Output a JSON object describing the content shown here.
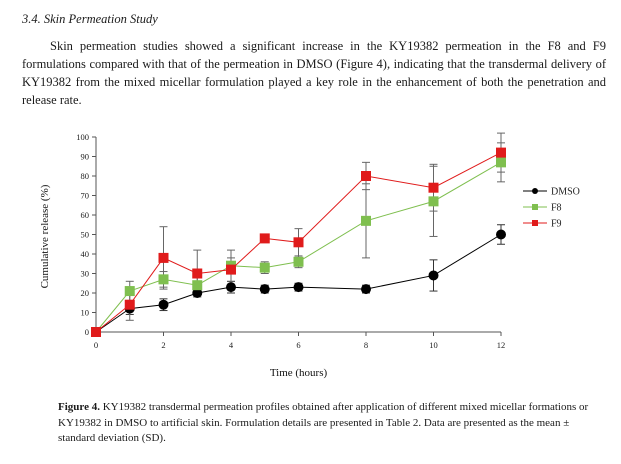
{
  "section": {
    "title": "3.4. Skin Permeation Study",
    "paragraph": "Skin permeation studies showed a significant increase in the KY19382 permeation in the F8 and F9 formulations compared with that of the permeation in DMSO (Figure 4), indicating that the transdermal delivery of KY19382 from the mixed micellar formulation played a key role in the enhancement of both the penetration and release rate."
  },
  "chart_data": {
    "type": "line",
    "title": "",
    "xlabel": "Time (hours)",
    "ylabel": "Cumulative release (%)",
    "xlim": [
      0,
      12
    ],
    "ylim": [
      0,
      100
    ],
    "xticks": [
      0,
      2,
      4,
      6,
      8,
      10,
      12
    ],
    "yticks": [
      0,
      10,
      20,
      30,
      40,
      50,
      60,
      70,
      80,
      90,
      100
    ],
    "legend_position": "right",
    "series": [
      {
        "name": "DMSO",
        "color": "#000000",
        "marker": "circle",
        "x": [
          0,
          1,
          2,
          3,
          4,
          5,
          6,
          8,
          10,
          12
        ],
        "values": [
          0,
          12,
          14,
          20,
          23,
          22,
          23,
          22,
          29,
          50
        ],
        "errors": [
          0,
          3,
          3,
          2,
          3,
          2,
          2,
          2,
          8,
          5
        ]
      },
      {
        "name": "F8",
        "color": "#7fbf4f",
        "marker": "square",
        "x": [
          0,
          1,
          2,
          3,
          4,
          5,
          6,
          8,
          10,
          12
        ],
        "values": [
          0,
          21,
          27,
          24,
          34,
          33,
          36,
          57,
          67,
          87
        ],
        "errors": [
          0,
          5,
          4,
          4,
          4,
          3,
          3,
          19,
          18,
          10
        ]
      },
      {
        "name": "F9",
        "color": "#e01b1b",
        "marker": "square",
        "x": [
          0,
          1,
          2,
          3,
          4,
          5,
          6,
          8,
          10,
          12
        ],
        "values": [
          0,
          14,
          38,
          30,
          32,
          48,
          46,
          80,
          74,
          92
        ],
        "errors": [
          0,
          8,
          16,
          12,
          10,
          0,
          7,
          7,
          12,
          10
        ]
      }
    ]
  },
  "figure": {
    "label": "Figure 4.",
    "caption": " KY19382 transdermal permeation profiles obtained after application of different mixed micellar formations or KY19382 in DMSO to artificial skin. Formulation details are presented in Table 2. Data are presented as the mean ± standard deviation (SD)."
  }
}
